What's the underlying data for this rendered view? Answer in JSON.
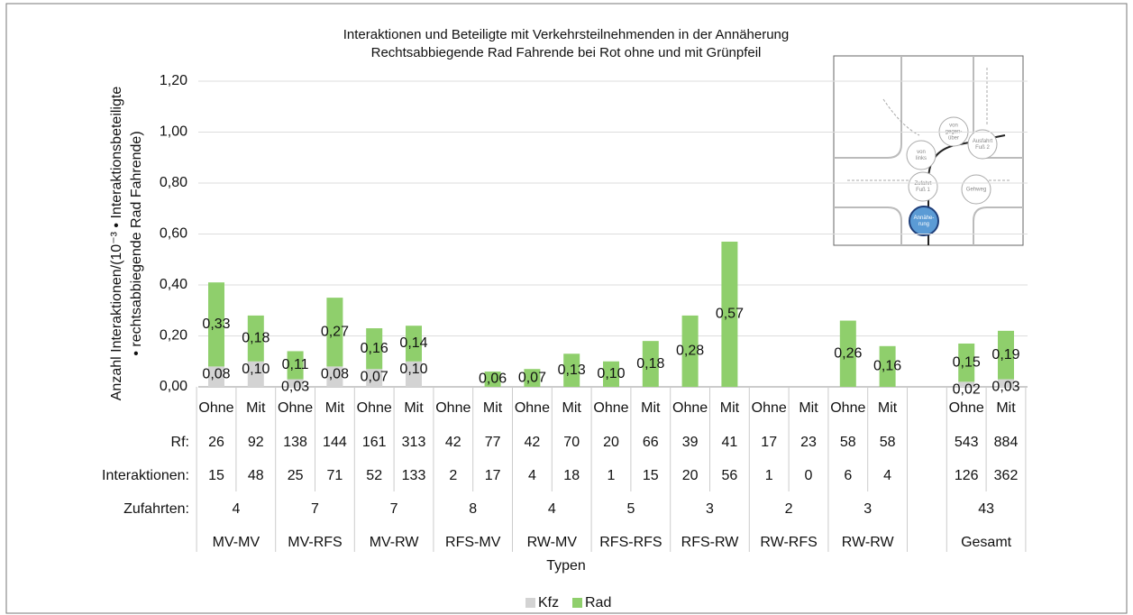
{
  "chart_data": {
    "type": "bar",
    "stacked": true,
    "title": [
      "Interaktionen und Beteiligte mit Verkehrsteilnehmenden in der Annäherung",
      "Rechtsabbiegende Rad Fahrende bei Rot ohne und mit Grünpfeil"
    ],
    "y_label": [
      "Anzahl Interaktionen/(10⁻³ • Interaktionsbeteiligte",
      "• rechtsabbiegende Rad Fahrende)"
    ],
    "x_label": "Typen",
    "categories": [
      "Ohne",
      "Mit",
      "Ohne",
      "Mit",
      "Ohne",
      "Mit",
      "Ohne",
      "Mit",
      "Ohne",
      "Mit",
      "Ohne",
      "Mit",
      "Ohne",
      "Mit",
      "Ohne",
      "Mit",
      "Ohne",
      "Mit",
      "Ohne",
      "Mit"
    ],
    "groups": [
      "MV-MV",
      "MV-RFS",
      "MV-RW",
      "RFS-MV",
      "RW-MV",
      "RFS-RFS",
      "RFS-RW",
      "RW-RFS",
      "RW-RW",
      "Gesamt"
    ],
    "series": [
      {
        "name": "Kfz",
        "color": "#d3d3d3",
        "values": [
          0.08,
          0.1,
          0.03,
          0.08,
          0.07,
          0.1,
          null,
          null,
          null,
          null,
          null,
          null,
          null,
          null,
          null,
          null,
          null,
          null,
          0.02,
          0.03
        ],
        "value_labels": [
          "0,08",
          "0,10",
          "0,03",
          "0,08",
          "0,07",
          "0,10",
          null,
          null,
          null,
          null,
          null,
          null,
          null,
          null,
          null,
          null,
          null,
          null,
          "0,02",
          "0,03"
        ]
      },
      {
        "name": "Rad",
        "color": "#8fcf6c",
        "values": [
          0.33,
          0.18,
          0.11,
          0.27,
          0.16,
          0.14,
          null,
          0.06,
          0.07,
          0.13,
          0.1,
          0.18,
          0.28,
          0.57,
          null,
          null,
          0.26,
          0.16,
          0.15,
          0.19
        ],
        "value_labels": [
          "0,33",
          "0,18",
          "0,11",
          "0,27",
          "0,16",
          "0,14",
          null,
          "0,06",
          "0,07",
          "0,13",
          "0,10",
          "0,18",
          "0,28",
          "0,57",
          null,
          null,
          "0,26",
          "0,16",
          "0,15",
          "0,19"
        ]
      }
    ],
    "ylim": [
      0,
      1.2
    ],
    "yticks": [
      {
        "value": 0,
        "label": "0,00"
      },
      {
        "value": 0.2,
        "label": "0,20"
      },
      {
        "value": 0.4,
        "label": "0,40"
      },
      {
        "value": 0.6,
        "label": "0,60"
      },
      {
        "value": 0.8,
        "label": "0,80"
      },
      {
        "value": 1.0,
        "label": "1,00"
      },
      {
        "value": 1.2,
        "label": "1,20"
      }
    ],
    "grid": true,
    "legend": "bottom",
    "table": {
      "rows": [
        {
          "label": "Rf:",
          "values": [
            26,
            92,
            138,
            144,
            161,
            313,
            42,
            77,
            42,
            70,
            20,
            66,
            39,
            41,
            17,
            23,
            58,
            58,
            543,
            884
          ]
        },
        {
          "label": "Interaktionen:",
          "values": [
            15,
            48,
            25,
            71,
            52,
            133,
            2,
            17,
            4,
            18,
            1,
            15,
            20,
            56,
            1,
            0,
            6,
            4,
            126,
            362
          ]
        }
      ],
      "group_row": {
        "label": "Zufahrten:",
        "values": [
          4,
          7,
          7,
          8,
          4,
          5,
          3,
          2,
          3,
          43
        ]
      }
    },
    "inset": {
      "nodes": [
        {
          "lines": [
            "von",
            "gegen-",
            "über"
          ]
        },
        {
          "lines": [
            "von",
            "links"
          ]
        },
        {
          "lines": [
            "Ausfahrt",
            "Fuß 2"
          ]
        },
        {
          "lines": [
            "Zufahrt",
            "Fuß 1"
          ]
        },
        {
          "lines": [
            "Gehweg"
          ]
        },
        {
          "lines": [
            "Annähe-",
            "rung"
          ]
        }
      ]
    }
  }
}
